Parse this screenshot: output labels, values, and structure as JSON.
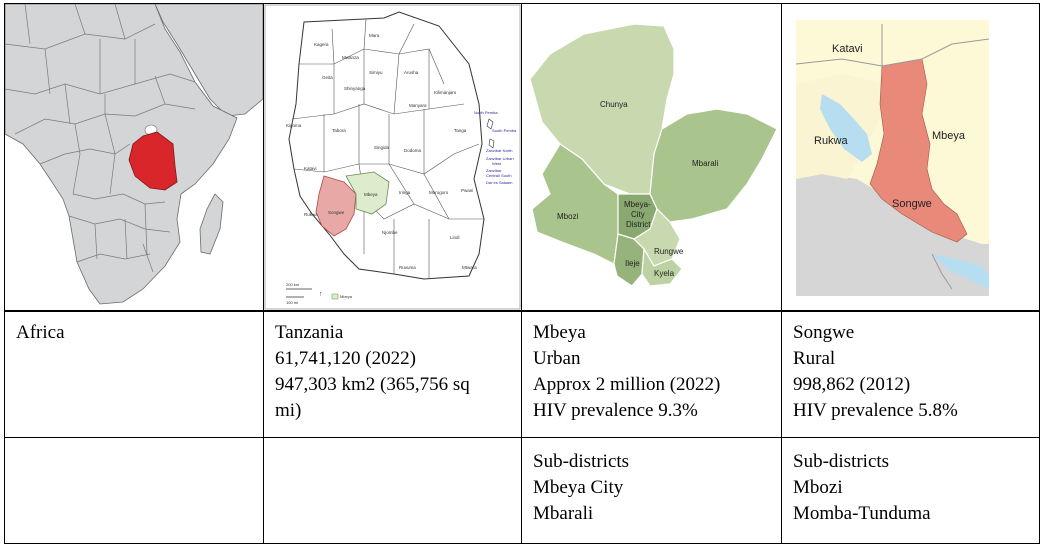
{
  "col_africa": {
    "label": "Africa"
  },
  "col_tanzania": {
    "lines": [
      "Tanzania",
      "61,741,120 (2022)",
      "947,303 km2 (365,756 sq",
      "mi)"
    ]
  },
  "col_mbeya": {
    "lines": [
      "Mbeya",
      "Urban",
      "Approx 2 million (2022)",
      "HIV prevalence 9.3%"
    ],
    "subdistricts": [
      "Sub-districts",
      "Mbeya City",
      "Mbarali"
    ]
  },
  "col_songwe": {
    "lines": [
      "Songwe",
      "Rural",
      "998,862 (2012)",
      "HIV prevalence 5.8%"
    ],
    "subdistricts": [
      "Sub-districts",
      "Mbozi",
      "Momba-Tunduma"
    ]
  },
  "map_tanzania": {
    "regions": [
      "Kagera",
      "Mara",
      "Mwanza",
      "Simiyu",
      "Geita",
      "Shinyanga",
      "Arusha",
      "Kilimanjaro",
      "Manyara",
      "Tanga",
      "Kigoma",
      "Tabora",
      "Singida",
      "Dodoma",
      "Katavi",
      "Rukwa",
      "Songwe",
      "Mbeya",
      "Iringa",
      "Morogoro",
      "Pwani",
      "Njombe",
      "Lindi",
      "Ruvuma",
      "Mtwara",
      "North Pemba",
      "South Pemba",
      "Zanzibar North",
      "Zanzibar Urban West",
      "Zanzibar Central/ South",
      "Dar es Salaam"
    ],
    "scale_km": "200 km",
    "scale_mi": "100 mi",
    "legend": "Mbeya"
  },
  "map_mbeya": {
    "districts": [
      "Chunya",
      "Mbarali",
      "Mbozi",
      "Mbeya-",
      "City",
      "District",
      "Ileje",
      "Rungwe",
      "Kyela"
    ]
  },
  "map_songwe": {
    "labels": [
      "Katavi",
      "Rukwa",
      "Mbeya",
      "Songwe"
    ]
  },
  "colors": {
    "africa_land": "#d3d5d7",
    "africa_border": "#6b6b6b",
    "tanzania_highlight": "#d9262b",
    "mbeya_light": "#c8d9b0",
    "mbeya_mid": "#a9c48c",
    "songwe_red": "#e8897a",
    "songwe_bg": "#fdf8d6",
    "lake_blue": "#b7def0"
  }
}
